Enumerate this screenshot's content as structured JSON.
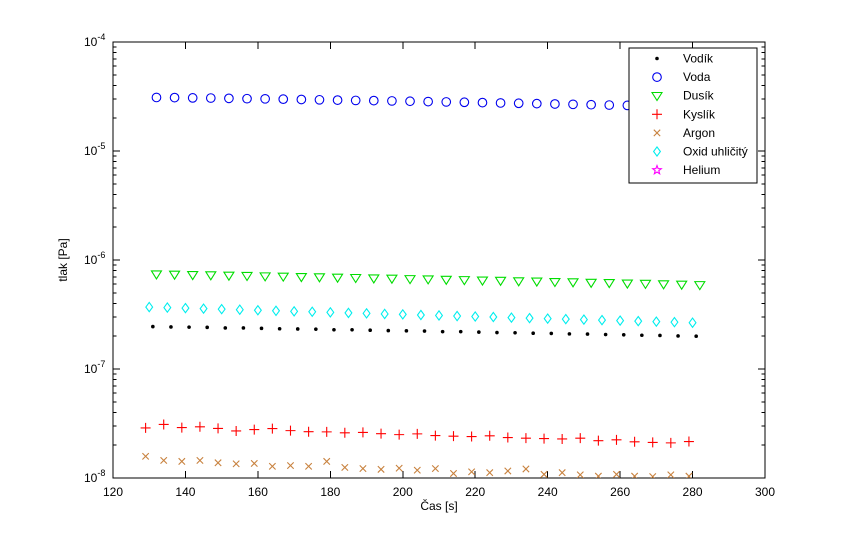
{
  "figure": {
    "background": "#ffffff"
  },
  "chart_data": {
    "type": "scatter",
    "title": "",
    "xlabel": "Čas [s]",
    "ylabel": "tlak [Pa]",
    "xlim": [
      120,
      300
    ],
    "ylog": true,
    "ylim": [
      1e-08,
      0.0001
    ],
    "xticks": [
      120,
      140,
      160,
      180,
      200,
      220,
      240,
      260,
      280,
      300
    ],
    "ytick_exponents": [
      -4,
      -5,
      -6,
      -7,
      -8
    ],
    "ytick_base": "10",
    "grid": false,
    "legend_position": "top-right",
    "series": [
      {
        "id": "vodik",
        "name": "Vodík",
        "marker": "point",
        "color": "#000000",
        "t": [
          131,
          136,
          141,
          146,
          151,
          156,
          161,
          166,
          171,
          176,
          181,
          186,
          191,
          196,
          201,
          206,
          211,
          216,
          221,
          226,
          231,
          236,
          241,
          246,
          251,
          256,
          261,
          266,
          271,
          276,
          281
        ],
        "values": [
          2.45e-07,
          2.43e-07,
          2.42e-07,
          2.41e-07,
          2.38e-07,
          2.38e-07,
          2.36e-07,
          2.34e-07,
          2.33e-07,
          2.32e-07,
          2.29e-07,
          2.29e-07,
          2.27e-07,
          2.25e-07,
          2.24e-07,
          2.23e-07,
          2.2e-07,
          2.2e-07,
          2.18e-07,
          2.16e-07,
          2.15e-07,
          2.13e-07,
          2.12e-07,
          2.1e-07,
          2.09e-07,
          2.07e-07,
          2.06e-07,
          2.04e-07,
          2.03e-07,
          2.01e-07,
          2e-07
        ]
      },
      {
        "id": "voda",
        "name": "Voda",
        "marker": "circle",
        "color": "#0000EE",
        "t": [
          132,
          137,
          142,
          147,
          152,
          157,
          162,
          167,
          172,
          177,
          182,
          187,
          192,
          197,
          202,
          207,
          212,
          217,
          222,
          227,
          232,
          237,
          242,
          247,
          252,
          257,
          262,
          267,
          272,
          277,
          282
        ],
        "values": [
          3.1e-05,
          3.09e-05,
          3.07e-05,
          3.06e-05,
          3.04e-05,
          3.02e-05,
          3.01e-05,
          2.99e-05,
          2.97e-05,
          2.95e-05,
          2.93e-05,
          2.91e-05,
          2.9e-05,
          2.88e-05,
          2.86e-05,
          2.84e-05,
          2.82e-05,
          2.8e-05,
          2.78e-05,
          2.76e-05,
          2.74e-05,
          2.72e-05,
          2.7e-05,
          2.68e-05,
          2.66e-05,
          2.64e-05,
          2.62e-05,
          2.59e-05,
          2.57e-05,
          2.54e-05,
          2.52e-05
        ]
      },
      {
        "id": "dusik",
        "name": "Dusík",
        "marker": "triangle-down",
        "color": "#00DD00",
        "t": [
          132,
          137,
          142,
          147,
          152,
          157,
          162,
          167,
          172,
          177,
          182,
          187,
          192,
          197,
          202,
          207,
          212,
          217,
          222,
          227,
          232,
          237,
          242,
          247,
          252,
          257,
          262,
          267,
          272,
          277,
          282
        ],
        "values": [
          7.42e-07,
          7.38e-07,
          7.32e-07,
          7.28e-07,
          7.22e-07,
          7.18e-07,
          7.12e-07,
          7.08e-07,
          7.02e-07,
          6.98e-07,
          6.92e-07,
          6.88e-07,
          6.82e-07,
          6.78e-07,
          6.72e-07,
          6.68e-07,
          6.62e-07,
          6.58e-07,
          6.52e-07,
          6.48e-07,
          6.42e-07,
          6.38e-07,
          6.32e-07,
          6.28e-07,
          6.22e-07,
          6.18e-07,
          6.12e-07,
          6.08e-07,
          6.02e-07,
          5.97e-07,
          5.92e-07
        ]
      },
      {
        "id": "kyslik",
        "name": "Kyslík",
        "marker": "plus",
        "color": "#FF0000",
        "t": [
          129,
          134,
          139,
          144,
          149,
          154,
          159,
          164,
          169,
          174,
          179,
          184,
          189,
          194,
          199,
          204,
          209,
          214,
          219,
          224,
          229,
          234,
          239,
          244,
          249,
          254,
          259,
          264,
          269,
          274,
          279
        ],
        "values": [
          2.88e-08,
          3.1e-08,
          2.9e-08,
          2.95e-08,
          2.85e-08,
          2.7e-08,
          2.78e-08,
          2.84e-08,
          2.72e-08,
          2.66e-08,
          2.65e-08,
          2.6e-08,
          2.62e-08,
          2.55e-08,
          2.5e-08,
          2.54e-08,
          2.45e-08,
          2.42e-08,
          2.4e-08,
          2.44e-08,
          2.35e-08,
          2.32e-08,
          2.3e-08,
          2.28e-08,
          2.32e-08,
          2.2e-08,
          2.24e-08,
          2.15e-08,
          2.12e-08,
          2.1e-08,
          2.16e-08
        ]
      },
      {
        "id": "argon",
        "name": "Argon",
        "marker": "x",
        "color": "#C8823F",
        "t": [
          129,
          134,
          139,
          144,
          149,
          154,
          159,
          164,
          169,
          174,
          179,
          184,
          189,
          194,
          199,
          204,
          209,
          214,
          219,
          224,
          229,
          234,
          239,
          244,
          249,
          254,
          259,
          264,
          269,
          274,
          279
        ],
        "values": [
          1.58e-08,
          1.45e-08,
          1.42e-08,
          1.45e-08,
          1.38e-08,
          1.35e-08,
          1.36e-08,
          1.28e-08,
          1.3e-08,
          1.28e-08,
          1.42e-08,
          1.25e-08,
          1.22e-08,
          1.2e-08,
          1.23e-08,
          1.18e-08,
          1.22e-08,
          1.1e-08,
          1.14e-08,
          1.12e-08,
          1.16e-08,
          1.21e-08,
          1.08e-08,
          1.12e-08,
          1.07e-08,
          1.04e-08,
          1.08e-08,
          1.04e-08,
          1.03e-08,
          1.07e-08,
          1.04e-08
        ]
      },
      {
        "id": "oxid-uhlicity",
        "name": "Oxid uhličitý",
        "marker": "diamond",
        "color": "#00EEEE",
        "t": [
          130,
          135,
          140,
          145,
          150,
          155,
          160,
          165,
          170,
          175,
          180,
          185,
          190,
          195,
          200,
          205,
          210,
          215,
          220,
          225,
          230,
          235,
          240,
          245,
          250,
          255,
          260,
          265,
          270,
          275,
          280
        ],
        "values": [
          3.7e-07,
          3.66e-07,
          3.62e-07,
          3.58e-07,
          3.54e-07,
          3.5e-07,
          3.46e-07,
          3.42e-07,
          3.38e-07,
          3.35e-07,
          3.31e-07,
          3.27e-07,
          3.24e-07,
          3.2e-07,
          3.17e-07,
          3.13e-07,
          3.1e-07,
          3.06e-07,
          3.03e-07,
          3e-07,
          2.96e-07,
          2.93e-07,
          2.9e-07,
          2.87e-07,
          2.84e-07,
          2.81e-07,
          2.78e-07,
          2.75e-07,
          2.72e-07,
          2.69e-07,
          2.66e-07
        ]
      },
      {
        "id": "helium",
        "name": "Helium",
        "marker": "pentagram",
        "color": "#FF00FF",
        "visible": false,
        "t": [],
        "values": []
      }
    ]
  },
  "legend": {
    "entries": [
      {
        "label": "Vodík",
        "marker": "point",
        "color": "#000000"
      },
      {
        "label": "Voda",
        "marker": "circle",
        "color": "#0000EE"
      },
      {
        "label": "Dusík",
        "marker": "triangle-down",
        "color": "#00DD00"
      },
      {
        "label": "Kyslík",
        "marker": "plus",
        "color": "#FF0000"
      },
      {
        "label": "Argon",
        "marker": "x",
        "color": "#C8823F"
      },
      {
        "label": "Oxid uhličitý",
        "marker": "diamond",
        "color": "#00EEEE"
      },
      {
        "label": "Helium",
        "marker": "pentagram",
        "color": "#FF00FF"
      }
    ]
  }
}
